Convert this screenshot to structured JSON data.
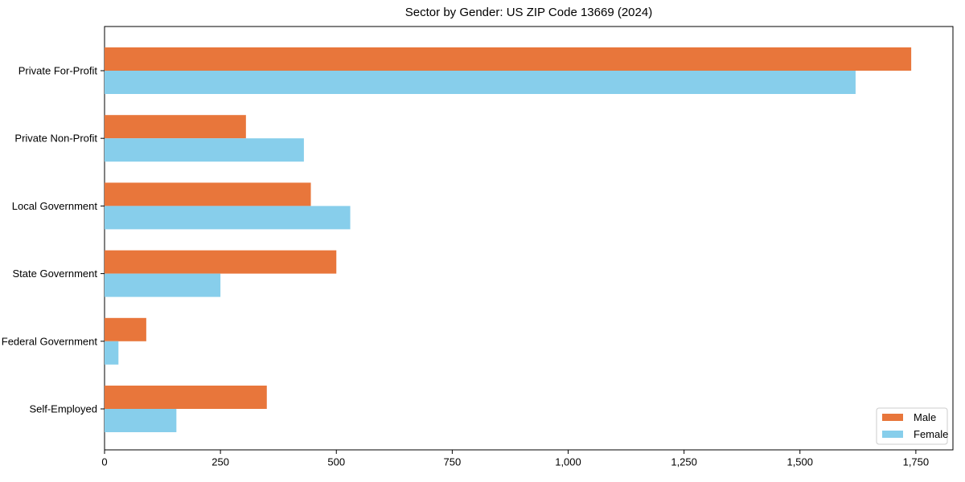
{
  "chart_data": {
    "type": "bar",
    "orientation": "horizontal",
    "title": "Sector by Gender: US ZIP Code 13669 (2024)",
    "categories": [
      "Private For-Profit",
      "Private Non-Profit",
      "Local Government",
      "State Government",
      "Federal Government",
      "Self-Employed"
    ],
    "series": [
      {
        "name": "Male",
        "color": "#e8763b",
        "values": [
          1740,
          305,
          445,
          500,
          90,
          350
        ]
      },
      {
        "name": "Female",
        "color": "#87ceeb",
        "values": [
          1620,
          430,
          530,
          250,
          30,
          155
        ]
      }
    ],
    "xlabel": "",
    "ylabel": "",
    "xlim": [
      0,
      1830
    ],
    "x_ticks": [
      0,
      250,
      500,
      750,
      1000,
      1250,
      1500,
      1750
    ],
    "x_tick_labels": [
      "0",
      "250",
      "500",
      "750",
      "1,000",
      "1,250",
      "1,500",
      "1,750"
    ],
    "grid": false,
    "legend": {
      "position": "lower right",
      "items": [
        {
          "label": "Male",
          "color": "#e8763b"
        },
        {
          "label": "Female",
          "color": "#87ceeb"
        }
      ]
    },
    "frame_color": "#000000",
    "legend_border_color": "#cccccc",
    "background_color": "#ffffff"
  }
}
